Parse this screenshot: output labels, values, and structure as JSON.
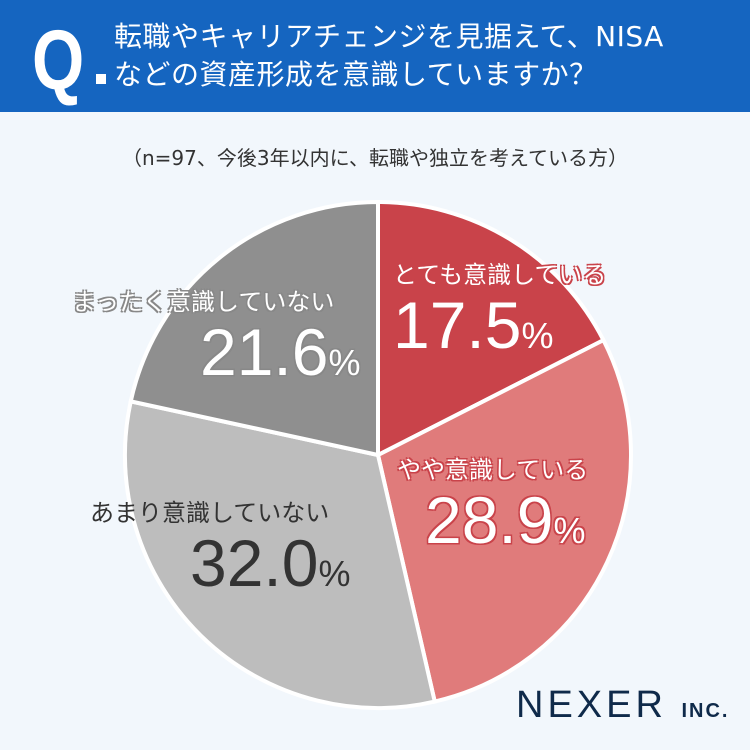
{
  "header": {
    "q_mark": "Q",
    "question_line1": "転職やキャリアチェンジを見据えて、NISA",
    "question_line2": "などの資産形成を意識していますか？"
  },
  "subtitle": "（n=97、今後3年以内に、転職や独立を考えている方）",
  "logo": {
    "name": "NEXER",
    "suffix": "INC."
  },
  "colors": {
    "header": "#1565c0",
    "very": "#c9434a",
    "somewhat": "#e07b7b",
    "not_much": "#bdbdbd",
    "not_at_all": "#8f8f8f"
  },
  "chart_data": {
    "type": "pie",
    "title": "転職やキャリアチェンジを見据えて、NISAなどの資産形成を意識していますか？",
    "subtitle": "（n=97、今後3年以内に、転職や独立を考えている方）",
    "categories": [
      "とても意識している",
      "やや意識している",
      "あまり意識していない",
      "まったく意識していない"
    ],
    "values": [
      17.5,
      28.9,
      32.0,
      21.6
    ],
    "labels": [
      "17.5",
      "28.9",
      "32.0",
      "21.6"
    ],
    "unit": "%",
    "colors": [
      "#c9434a",
      "#e07b7b",
      "#bdbdbd",
      "#8f8f8f"
    ],
    "start_angle": "12 o'clock, clockwise",
    "legend": "none (labels on slices)"
  }
}
